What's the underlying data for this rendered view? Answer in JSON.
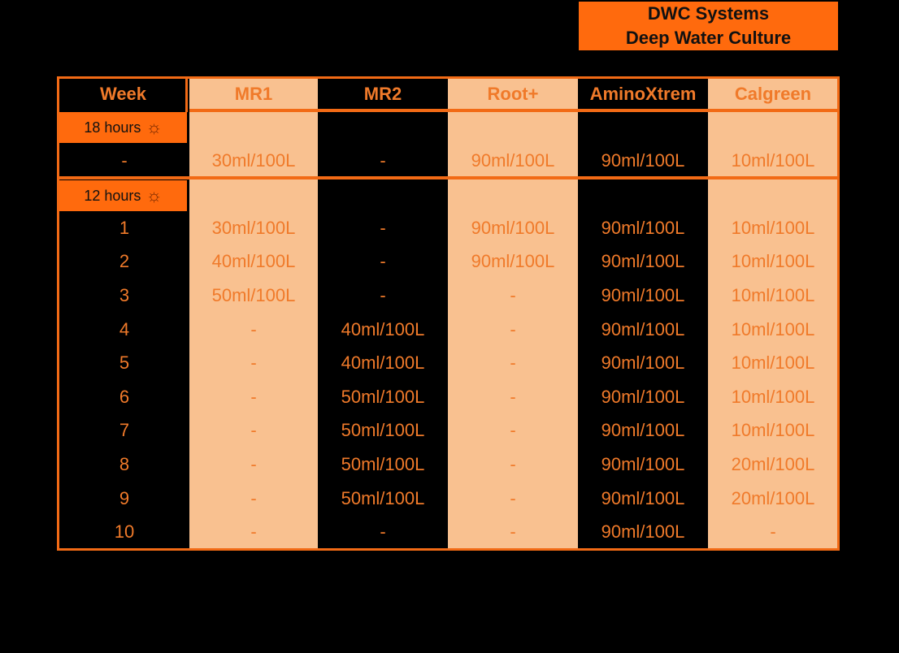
{
  "title": {
    "line1": "DWC Systems",
    "line2": "Deep Water Culture"
  },
  "colors": {
    "accent": "#ff6a0d",
    "light_column": "#f9c190",
    "text": "#f07a2a"
  },
  "table": {
    "columns": [
      "Week",
      "MR1",
      "MR2",
      "Root+",
      "AminoXtrem",
      "Calgreen"
    ],
    "sections": [
      {
        "label": "18 hours",
        "icon": "sun-icon",
        "rows": [
          [
            "-",
            "30ml/100L",
            "-",
            "90ml/100L",
            "90ml/100L",
            "10ml/100L"
          ]
        ]
      },
      {
        "label": "12 hours",
        "icon": "sun-icon",
        "rows": [
          [
            "1",
            "30ml/100L",
            "-",
            "90ml/100L",
            "90ml/100L",
            "10ml/100L"
          ],
          [
            "2",
            "40ml/100L",
            "-",
            "90ml/100L",
            "90ml/100L",
            "10ml/100L"
          ],
          [
            "3",
            "50ml/100L",
            "-",
            "-",
            "90ml/100L",
            "10ml/100L"
          ],
          [
            "4",
            "-",
            "40ml/100L",
            "-",
            "90ml/100L",
            "10ml/100L"
          ],
          [
            "5",
            "-",
            "40ml/100L",
            "-",
            "90ml/100L",
            "10ml/100L"
          ],
          [
            "6",
            "-",
            "50ml/100L",
            "-",
            "90ml/100L",
            "10ml/100L"
          ],
          [
            "7",
            "-",
            "50ml/100L",
            "-",
            "90ml/100L",
            "10ml/100L"
          ],
          [
            "8",
            "-",
            "50ml/100L",
            "-",
            "90ml/100L",
            "20ml/100L"
          ],
          [
            "9",
            "-",
            "50ml/100L",
            "-",
            "90ml/100L",
            "20ml/100L"
          ],
          [
            "10",
            "-",
            "-",
            "-",
            "90ml/100L",
            "-"
          ]
        ]
      }
    ]
  }
}
